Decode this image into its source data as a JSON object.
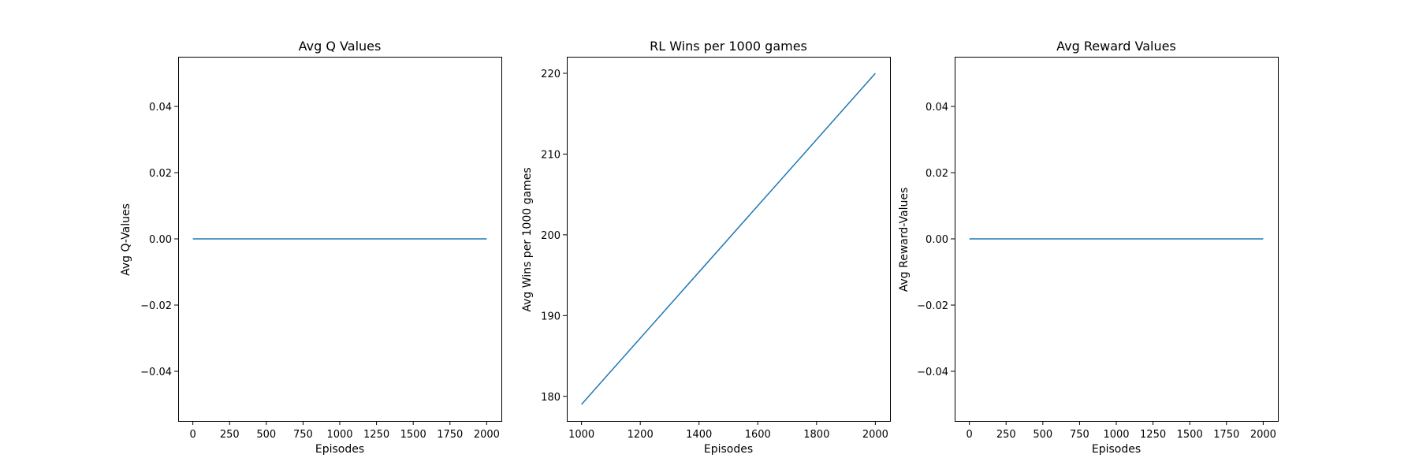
{
  "chart_data": [
    {
      "type": "line",
      "title": "Avg Q Values",
      "xlabel": "Episodes",
      "ylabel": "Avg Q-Values",
      "xlim": [
        -100,
        2100
      ],
      "ylim": [
        -0.055,
        0.055
      ],
      "xticks": [
        0,
        250,
        500,
        750,
        1000,
        1250,
        1500,
        1750,
        2000
      ],
      "xtick_labels": [
        "0",
        "250",
        "500",
        "750",
        "1000",
        "1250",
        "1500",
        "1750",
        "2000"
      ],
      "yticks": [
        -0.04,
        -0.02,
        0.0,
        0.02,
        0.04
      ],
      "ytick_labels": [
        "−0.04",
        "−0.02",
        "0.00",
        "0.02",
        "0.04"
      ],
      "grid": false,
      "series": [
        {
          "color": "#1f77b4",
          "x": [
            0,
            2000
          ],
          "y": [
            0.0,
            0.0
          ]
        }
      ]
    },
    {
      "type": "line",
      "title": "RL Wins per 1000 games",
      "xlabel": "Episodes",
      "ylabel": "Avg Wins per 1000 games",
      "xlim": [
        950,
        2050
      ],
      "ylim": [
        176.95,
        222.05
      ],
      "xticks": [
        1000,
        1200,
        1400,
        1600,
        1800,
        2000
      ],
      "xtick_labels": [
        "1000",
        "1200",
        "1400",
        "1600",
        "1800",
        "2000"
      ],
      "yticks": [
        180,
        190,
        200,
        210,
        220
      ],
      "ytick_labels": [
        "180",
        "190",
        "200",
        "210",
        "220"
      ],
      "grid": false,
      "series": [
        {
          "color": "#1f77b4",
          "x": [
            1000,
            2000
          ],
          "y": [
            179,
            220
          ]
        }
      ]
    },
    {
      "type": "line",
      "title": "Avg Reward Values",
      "xlabel": "Episodes",
      "ylabel": "Avg Reward-Values",
      "xlim": [
        -100,
        2100
      ],
      "ylim": [
        -0.055,
        0.055
      ],
      "xticks": [
        0,
        250,
        500,
        750,
        1000,
        1250,
        1500,
        1750,
        2000
      ],
      "xtick_labels": [
        "0",
        "250",
        "500",
        "750",
        "1000",
        "1250",
        "1500",
        "1750",
        "2000"
      ],
      "yticks": [
        -0.04,
        -0.02,
        0.0,
        0.02,
        0.04
      ],
      "ytick_labels": [
        "−0.04",
        "−0.02",
        "0.00",
        "0.02",
        "0.04"
      ],
      "grid": false,
      "series": [
        {
          "color": "#1f77b4",
          "x": [
            0,
            2000
          ],
          "y": [
            0.0,
            0.0
          ]
        }
      ]
    }
  ]
}
